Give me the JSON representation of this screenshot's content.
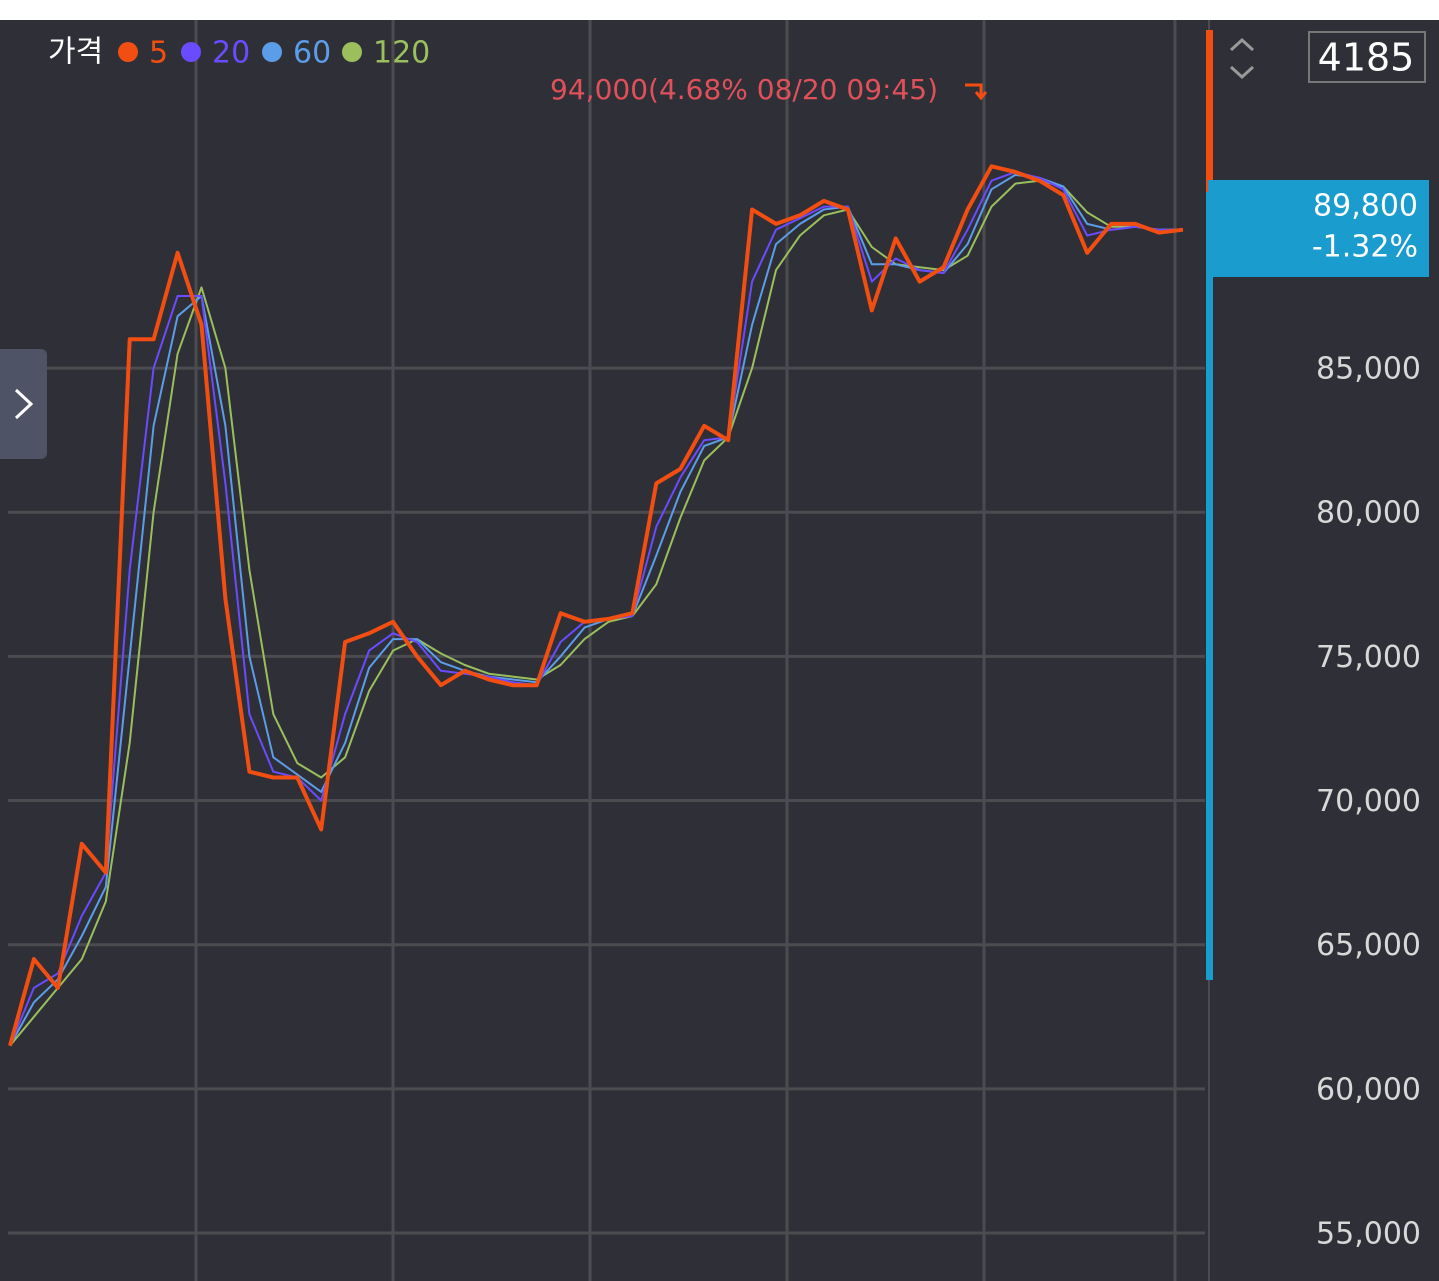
{
  "chart_data": {
    "type": "line",
    "legend_title": "가격",
    "high_label": "94,000(4.68% 08/20 09:45)",
    "count_label": 4185,
    "price_label": "89,800",
    "change_label": "-1.32%",
    "categories": [
      null,
      null,
      null,
      null,
      null,
      null,
      null,
      null,
      null,
      null,
      null,
      null,
      null,
      null,
      null,
      null,
      null,
      null,
      null,
      null,
      null,
      null,
      null,
      null,
      null,
      null,
      null,
      null,
      null,
      null,
      null,
      null,
      null,
      null,
      null,
      null,
      null,
      null,
      null,
      null,
      null,
      null,
      null,
      null,
      null,
      null,
      null,
      null,
      null,
      null
    ],
    "series": [
      {
        "name": "5",
        "color": "#f24e12",
        "values": [
          61500,
          64500,
          63500,
          68500,
          67500,
          86000,
          86000,
          89000,
          86500,
          77000,
          71000,
          70800,
          70800,
          69000,
          75500,
          75800,
          76200,
          75000,
          74000,
          74500,
          74200,
          74000,
          74000,
          76500,
          76200,
          76300,
          76500,
          81000,
          81500,
          83000,
          82500,
          90500,
          90000,
          90300,
          90800,
          90500,
          87000,
          89500,
          88000,
          88500,
          90500,
          92000,
          91800,
          91500,
          91000,
          89000,
          90000,
          90000,
          89700,
          89800
        ]
      },
      {
        "name": "20",
        "color": "#6a4bff",
        "values": [
          61500,
          63500,
          64000,
          66000,
          67500,
          78000,
          85000,
          87500,
          87500,
          81000,
          73000,
          71000,
          70800,
          70000,
          73000,
          75200,
          75800,
          75500,
          74500,
          74400,
          74300,
          74100,
          74000,
          75500,
          76200,
          76300,
          76400,
          79500,
          81200,
          82500,
          82600,
          88000,
          89800,
          90200,
          90600,
          90600,
          88000,
          88800,
          88400,
          88300,
          89800,
          91500,
          91800,
          91600,
          91200,
          89600,
          89800,
          89900,
          89800,
          89800
        ]
      },
      {
        "name": "60",
        "color": "#5b9de8",
        "values": [
          61500,
          63000,
          63800,
          65300,
          67000,
          75000,
          83000,
          86800,
          87500,
          83000,
          75000,
          71500,
          70900,
          70300,
          72000,
          74600,
          75600,
          75600,
          74800,
          74500,
          74300,
          74200,
          74100,
          75000,
          76000,
          76300,
          76400,
          78500,
          80700,
          82300,
          82600,
          86500,
          89300,
          90000,
          90500,
          90600,
          88600,
          88600,
          88400,
          88300,
          89300,
          91200,
          91700,
          91600,
          91300,
          90000,
          89800,
          89900,
          89800,
          89800
        ]
      },
      {
        "name": "120",
        "color": "#9abf5c",
        "values": [
          61500,
          62500,
          63500,
          64500,
          66500,
          72000,
          80000,
          85500,
          87800,
          85000,
          78000,
          73000,
          71300,
          70800,
          71500,
          73800,
          75200,
          75600,
          75100,
          74700,
          74400,
          74300,
          74200,
          74700,
          75600,
          76200,
          76400,
          77500,
          79800,
          81800,
          82600,
          85000,
          88400,
          89600,
          90300,
          90500,
          89200,
          88600,
          88500,
          88400,
          88900,
          90600,
          91400,
          91500,
          91300,
          90400,
          89900,
          89900,
          89800,
          89800
        ]
      }
    ],
    "ylim": [
      53335,
      97074
    ],
    "yticks": [
      {
        "value": 55000,
        "label": "55,000"
      },
      {
        "value": 60000,
        "label": "60,000"
      },
      {
        "value": 65000,
        "label": "65,000"
      },
      {
        "value": 70000,
        "label": "70,000"
      },
      {
        "value": 75000,
        "label": "75,000"
      },
      {
        "value": 80000,
        "label": "80,000"
      },
      {
        "value": 85000,
        "label": "85,000"
      }
    ],
    "grid": true
  }
}
